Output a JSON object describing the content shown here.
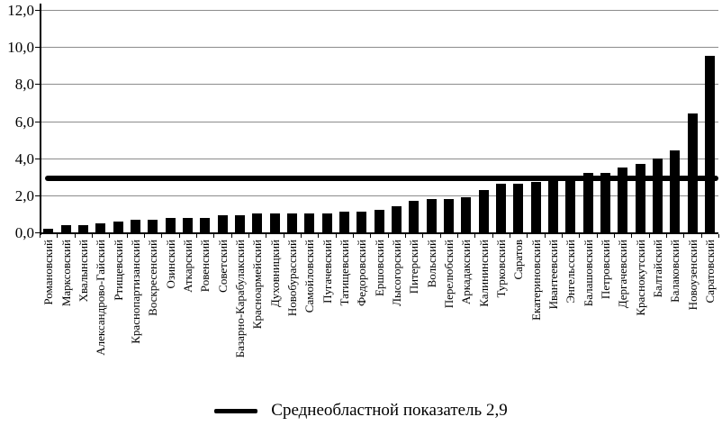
{
  "chart_data": {
    "type": "bar",
    "title": "",
    "xlabel": "",
    "ylabel": "",
    "grid": true,
    "legend_position": "bottom",
    "bar_color": "#000000",
    "background_color": "#ffffff",
    "categories": [
      "Романовский",
      "Марксовский",
      "Хвалынский",
      "Александрово-Гайский",
      "Ртищевский",
      "Краснопартизанский",
      "Воскресенский",
      "Озинский",
      "Аткарский",
      "Ровенский",
      "Советский",
      "Базарно-Карабулакский",
      "Красноармейский",
      "Духовницкий",
      "Новобурасский",
      "Самойловский",
      "Пугачевский",
      "Татищевский",
      "Федоровский",
      "Ершовский",
      "Лысогорский",
      "Питерский",
      "Вольский",
      "Перелюбский",
      "Аркадакский",
      "Калининский",
      "Турковский",
      "Саратов",
      "Екатериновский",
      "Ивантеевский",
      "Энгельсский",
      "Балашовский",
      "Петровский",
      "Дергачевский",
      "Краснокутский",
      "Балтайский",
      "Балаковский",
      "Новоузенский",
      "Саратовский"
    ],
    "values": [
      0.2,
      0.4,
      0.4,
      0.5,
      0.6,
      0.7,
      0.7,
      0.8,
      0.8,
      0.8,
      0.9,
      0.9,
      1.0,
      1.0,
      1.0,
      1.0,
      1.0,
      1.1,
      1.1,
      1.2,
      1.4,
      1.7,
      1.8,
      1.8,
      1.9,
      2.3,
      2.6,
      2.6,
      2.7,
      2.9,
      3.0,
      3.2,
      3.2,
      3.5,
      3.7,
      4.0,
      4.4,
      6.4,
      9.5
    ],
    "y_axis": {
      "min": 0,
      "max": 12,
      "tick_values": [
        0,
        2,
        4,
        6,
        8,
        10,
        12
      ],
      "tick_labels": [
        "0,0",
        "2,0",
        "4,0",
        "6,0",
        "8,0",
        "10,0",
        "12,0"
      ]
    },
    "average_line": {
      "value": 2.9,
      "color": "#000000",
      "legend_label": "Среднеобластной показатель 2,9"
    }
  }
}
